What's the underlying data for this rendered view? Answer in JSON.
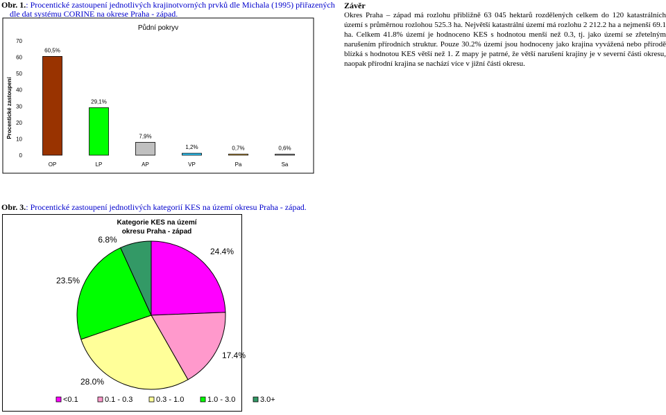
{
  "fig1": {
    "number": "Obr. 1.",
    "caption_line1": ": Procentické zastoupení jednotlivých krajinotvorných prvků dle Michala (1995) přiřazených",
    "caption_line2": "dle dat systému CORINE na okrese Praha - západ."
  },
  "fig3": {
    "number": "Obr. 3.",
    "caption": ": Procentické zastoupení jednotlivých kategorií KES na území okresu Praha - západ."
  },
  "conclusion": {
    "title": "Závěr",
    "text": "Okres Praha – západ má rozlohu přibližně 63 045 hektarů rozdělených celkem do 120 katastrálních území s průměrnou rozlohou 525.3 ha. Největší katastrální území má rozlohu 2 212.2 ha a nejmenší 69.1 ha. Celkem 41.8% území je hodnoceno KES s hodnotou menší než 0.3, tj. jako území se zřetelným narušením přírodních struktur. Pouze 30.2% území jsou hodnoceny jako krajina vyvážená nebo přírodě blízká s hodnotou KES větší než 1. Z mapy je patrné, že větší narušení krajiny je v severní části okresu, naopak přírodní krajina se nachází více v jižní části okresu."
  },
  "chart_data": [
    {
      "type": "bar",
      "title": "Půdní pokryv",
      "ylabel": "Procentické zastoupení",
      "xlabel": "",
      "categories": [
        "OP",
        "LP",
        "AP",
        "VP",
        "Pa",
        "Sa"
      ],
      "values": [
        60.5,
        29.1,
        7.9,
        1.2,
        0.7,
        0.6
      ],
      "data_labels": [
        "60,5%",
        "29,1%",
        "7,9%",
        "1,2%",
        "0,7%",
        "0,6%"
      ],
      "colors": [
        "#993300",
        "#00ff00",
        "#c0c0c0",
        "#33ccff",
        "#ffcc66",
        "#c0c0c0"
      ],
      "yticks": [
        "0",
        "10",
        "20",
        "30",
        "40",
        "50",
        "60",
        "70"
      ],
      "ylim": [
        0,
        70
      ],
      "grid": false,
      "legend": "none"
    },
    {
      "type": "pie",
      "title": "Kategorie KES na území okresu Praha - západ",
      "categories": [
        "<0.1",
        "0.1 - 0.3",
        "0.3 - 1.0",
        "1.0 - 3.0",
        "3.0+"
      ],
      "values": [
        24.4,
        17.4,
        28.0,
        23.5,
        6.8
      ],
      "data_labels": [
        "24.4%",
        "17.4%",
        "28.0%",
        "23.5%",
        "6.8%"
      ],
      "colors": [
        "#ff00ff",
        "#ff99cc",
        "#ffff99",
        "#00ff00",
        "#339966"
      ],
      "legend": "bottom"
    }
  ]
}
